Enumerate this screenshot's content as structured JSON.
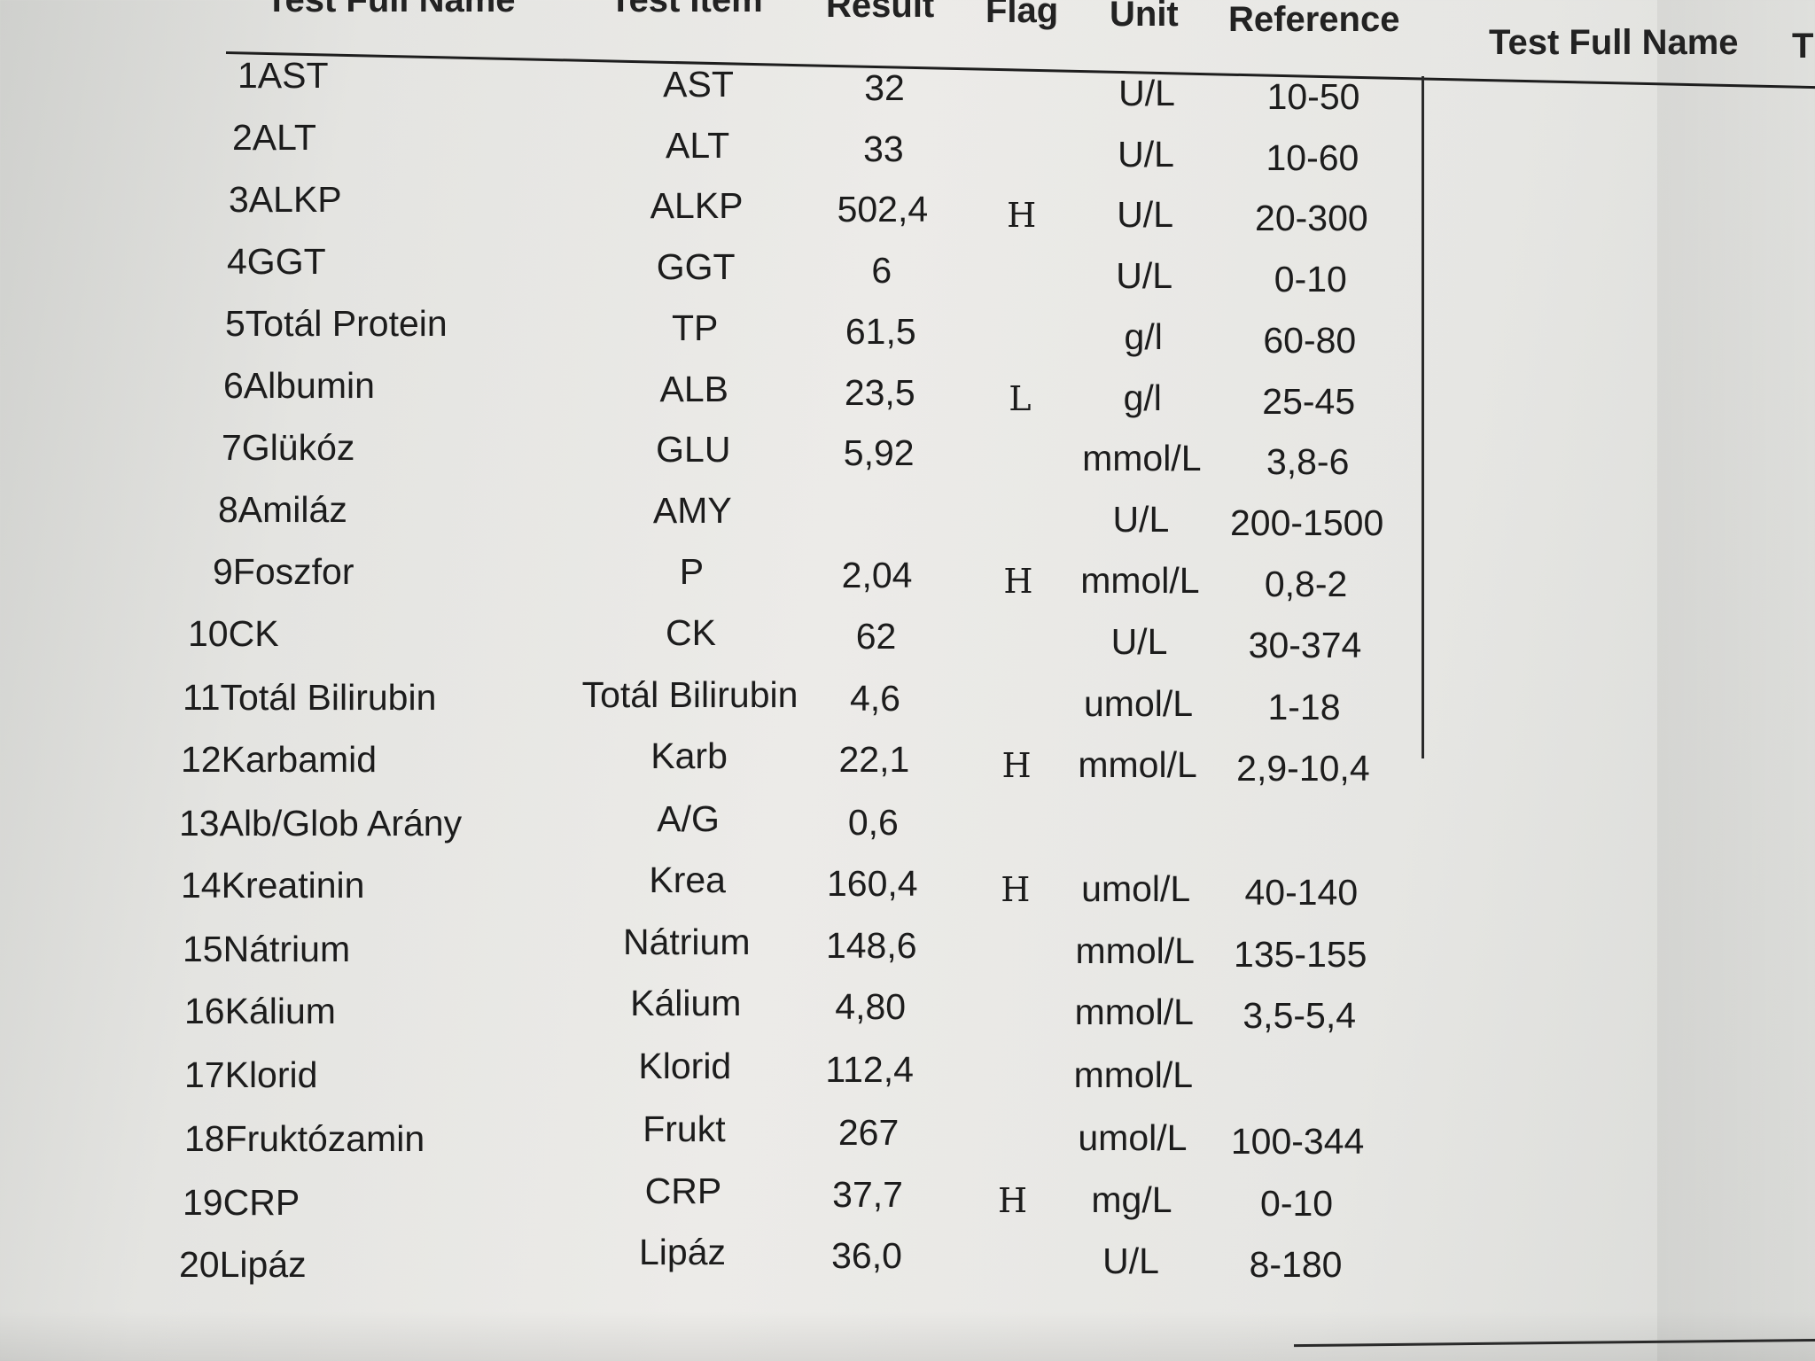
{
  "headers": {
    "test_full_name_left": "Test Full Name",
    "test_item": "Test Item",
    "result": "Result",
    "flag": "Flag",
    "unit": "Unit",
    "reference": "Reference",
    "test_full_name_right": "Test Full Name",
    "cut_off_right": "T"
  },
  "rows": [
    {
      "name": "1AST",
      "item": "AST",
      "result": "32",
      "flag": "",
      "unit": "U/L",
      "reference": "10-50"
    },
    {
      "name": "2ALT",
      "item": "ALT",
      "result": "33",
      "flag": "",
      "unit": "U/L",
      "reference": "10-60"
    },
    {
      "name": "3ALKP",
      "item": "ALKP",
      "result": "502,4",
      "flag": "H",
      "unit": "U/L",
      "reference": "20-300"
    },
    {
      "name": "4GGT",
      "item": "GGT",
      "result": "6",
      "flag": "",
      "unit": "U/L",
      "reference": "0-10"
    },
    {
      "name": "5Totál Protein",
      "item": "TP",
      "result": "61,5",
      "flag": "",
      "unit": "g/l",
      "reference": "60-80"
    },
    {
      "name": "6Albumin",
      "item": "ALB",
      "result": "23,5",
      "flag": "L",
      "unit": "g/l",
      "reference": "25-45"
    },
    {
      "name": "7Glükóz",
      "item": "GLU",
      "result": "5,92",
      "flag": "",
      "unit": "mmol/L",
      "reference": "3,8-6"
    },
    {
      "name": "8Amiláz",
      "item": "AMY",
      "result": "",
      "flag": "",
      "unit": "U/L",
      "reference": "200-1500"
    },
    {
      "name": "9Foszfor",
      "item": "P",
      "result": "2,04",
      "flag": "H",
      "unit": "mmol/L",
      "reference": "0,8-2"
    },
    {
      "name": "10CK",
      "item": "CK",
      "result": "62",
      "flag": "",
      "unit": "U/L",
      "reference": "30-374"
    },
    {
      "name": "11Totál Bilirubin",
      "item": "Totál Bilirubin",
      "result": "4,6",
      "flag": "",
      "unit": "umol/L",
      "reference": "1-18"
    },
    {
      "name": "12Karbamid",
      "item": "Karb",
      "result": "22,1",
      "flag": "H",
      "unit": "mmol/L",
      "reference": "2,9-10,4"
    },
    {
      "name": "13Alb/Glob Arány",
      "item": "A/G",
      "result": "0,6",
      "flag": "",
      "unit": "",
      "reference": ""
    },
    {
      "name": "14Kreatinin",
      "item": "Krea",
      "result": "160,4",
      "flag": "H",
      "unit": "umol/L",
      "reference": "40-140"
    },
    {
      "name": "15Nátrium",
      "item": "Nátrium",
      "result": "148,6",
      "flag": "",
      "unit": "mmol/L",
      "reference": "135-155"
    },
    {
      "name": "16Kálium",
      "item": "Kálium",
      "result": "4,80",
      "flag": "",
      "unit": "mmol/L",
      "reference": "3,5-5,4"
    },
    {
      "name": "17Klorid",
      "item": "Klorid",
      "result": "112,4",
      "flag": "",
      "unit": "mmol/L",
      "reference": ""
    },
    {
      "name": "18Fruktózamin",
      "item": "Frukt",
      "result": "267",
      "flag": "",
      "unit": "umol/L",
      "reference": "100-344"
    },
    {
      "name": "19CRP",
      "item": "CRP",
      "result": "37,7",
      "flag": "H",
      "unit": "mg/L",
      "reference": "0-10"
    },
    {
      "name": "20Lipáz",
      "item": "Lipáz",
      "result": "36,0",
      "flag": "",
      "unit": "U/L",
      "reference": "8-180"
    }
  ]
}
